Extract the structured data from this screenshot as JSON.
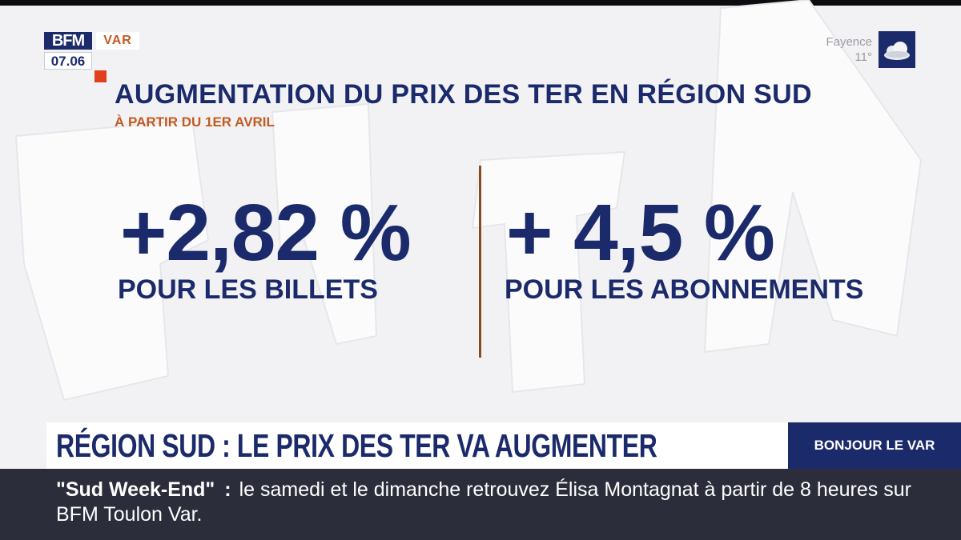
{
  "channel": {
    "logo": "BFM",
    "region": "VAR",
    "time": "07.06"
  },
  "weather": {
    "city": "Fayence",
    "temperature": "11°",
    "icon": "cloud-icon"
  },
  "graphic": {
    "title": "AUGMENTATION DU PRIX DES TER EN RÉGION SUD",
    "subtitle": "À PARTIR DU 1ER AVRIL",
    "stats": [
      {
        "value": "+2,82 %",
        "label": "POUR LES BILLETS"
      },
      {
        "value": "+ 4,5 %",
        "label": "POUR LES ABONNEMENTS"
      }
    ]
  },
  "lower_third": {
    "headline": "RÉGION SUD : LE PRIX DES TER VA AUGMENTER",
    "show": "BONJOUR LE VAR"
  },
  "ticker": {
    "program": "\"Sud Week-End\"",
    "separator": ":",
    "text": "le samedi et le dimanche retrouvez Élisa Montagnat à partir de 8 heures sur BFM Toulon Var."
  },
  "colors": {
    "navy": "#1b2a6b",
    "orange": "#c25a22",
    "red_accent": "#e0401c",
    "ticker_bg": "#2b2d3b"
  }
}
